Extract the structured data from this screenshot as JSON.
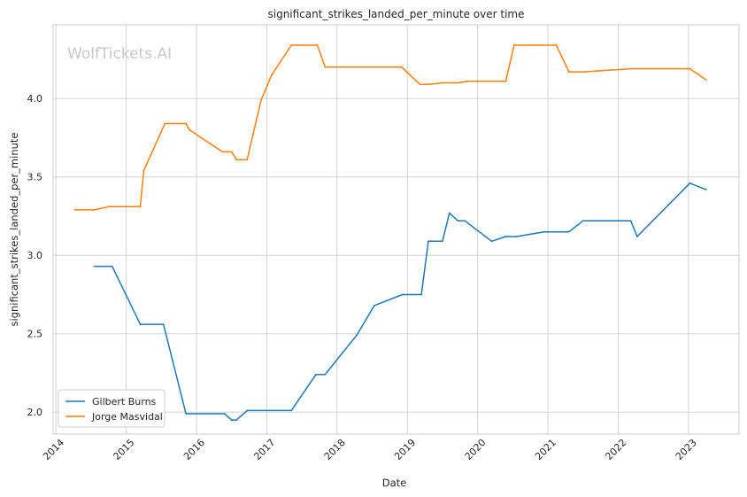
{
  "chart_data": {
    "type": "line",
    "title": "significant_strikes_landed_per_minute over time",
    "xlabel": "Date",
    "ylabel": "significant_strikes_landed_per_minute",
    "watermark": "WolfTickets.AI",
    "xlim": [
      2013.96,
      2023.72
    ],
    "ylim": [
      1.86,
      4.47
    ],
    "xticks": [
      {
        "value": 2014,
        "label": "2014"
      },
      {
        "value": 2015,
        "label": "2015"
      },
      {
        "value": 2016,
        "label": "2016"
      },
      {
        "value": 2017,
        "label": "2017"
      },
      {
        "value": 2018,
        "label": "2018"
      },
      {
        "value": 2019,
        "label": "2019"
      },
      {
        "value": 2020,
        "label": "2020"
      },
      {
        "value": 2021,
        "label": "2021"
      },
      {
        "value": 2022,
        "label": "2022"
      },
      {
        "value": 2023,
        "label": "2023"
      }
    ],
    "yticks": [
      {
        "value": 2.0,
        "label": "2.0"
      },
      {
        "value": 2.5,
        "label": "2.5"
      },
      {
        "value": 3.0,
        "label": "3.0"
      },
      {
        "value": 3.5,
        "label": "3.5"
      },
      {
        "value": 4.0,
        "label": "4.0"
      }
    ],
    "grid": true,
    "legend_position": "lower-left",
    "series": [
      {
        "name": "Gilbert Burns",
        "color": "#1f77b4",
        "points": [
          [
            2014.55,
            2.93
          ],
          [
            2014.8,
            2.93
          ],
          [
            2015.2,
            2.56
          ],
          [
            2015.53,
            2.56
          ],
          [
            2015.85,
            1.99
          ],
          [
            2016.4,
            1.99
          ],
          [
            2016.5,
            1.95
          ],
          [
            2016.57,
            1.95
          ],
          [
            2016.72,
            2.01
          ],
          [
            2017.35,
            2.01
          ],
          [
            2017.7,
            2.24
          ],
          [
            2017.83,
            2.24
          ],
          [
            2018.28,
            2.49
          ],
          [
            2018.53,
            2.68
          ],
          [
            2018.93,
            2.75
          ],
          [
            2019.2,
            2.75
          ],
          [
            2019.3,
            3.09
          ],
          [
            2019.5,
            3.09
          ],
          [
            2019.6,
            3.27
          ],
          [
            2019.72,
            3.22
          ],
          [
            2019.82,
            3.22
          ],
          [
            2020.2,
            3.09
          ],
          [
            2020.4,
            3.12
          ],
          [
            2020.55,
            3.12
          ],
          [
            2020.95,
            3.15
          ],
          [
            2021.1,
            3.15
          ],
          [
            2021.3,
            3.15
          ],
          [
            2021.5,
            3.22
          ],
          [
            2022.18,
            3.22
          ],
          [
            2022.27,
            3.12
          ],
          [
            2023.02,
            3.46
          ],
          [
            2023.25,
            3.42
          ]
        ]
      },
      {
        "name": "Jorge Masvidal",
        "color": "#ff7f0e",
        "points": [
          [
            2014.27,
            3.29
          ],
          [
            2014.55,
            3.29
          ],
          [
            2014.75,
            3.31
          ],
          [
            2015.2,
            3.31
          ],
          [
            2015.25,
            3.54
          ],
          [
            2015.55,
            3.84
          ],
          [
            2015.85,
            3.84
          ],
          [
            2015.9,
            3.8
          ],
          [
            2016.37,
            3.66
          ],
          [
            2016.5,
            3.66
          ],
          [
            2016.57,
            3.61
          ],
          [
            2016.72,
            3.61
          ],
          [
            2016.92,
            3.99
          ],
          [
            2017.07,
            4.15
          ],
          [
            2017.35,
            4.34
          ],
          [
            2017.72,
            4.34
          ],
          [
            2017.83,
            4.2
          ],
          [
            2018.92,
            4.2
          ],
          [
            2019.18,
            4.09
          ],
          [
            2019.3,
            4.09
          ],
          [
            2019.5,
            4.1
          ],
          [
            2019.72,
            4.1
          ],
          [
            2019.85,
            4.11
          ],
          [
            2020.4,
            4.11
          ],
          [
            2020.52,
            4.34
          ],
          [
            2021.12,
            4.34
          ],
          [
            2021.3,
            4.17
          ],
          [
            2021.5,
            4.17
          ],
          [
            2022.18,
            4.19
          ],
          [
            2023.02,
            4.19
          ],
          [
            2023.25,
            4.12
          ]
        ]
      }
    ]
  }
}
